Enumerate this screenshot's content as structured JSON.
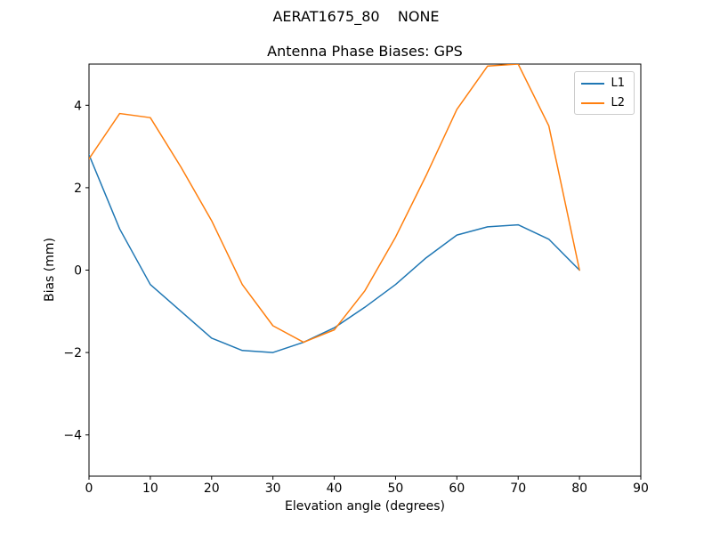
{
  "figure": {
    "suptitle": "AERAT1675_80    NONE"
  },
  "chart_data": {
    "type": "line",
    "title": "Antenna Phase Biases: GPS",
    "xlabel": "Elevation angle (degrees)",
    "ylabel": "Bias (mm)",
    "xlim": [
      0,
      90
    ],
    "ylim": [
      -5,
      5
    ],
    "xticks": [
      0,
      10,
      20,
      30,
      40,
      50,
      60,
      70,
      80,
      90
    ],
    "yticks": [
      -4,
      -2,
      0,
      2,
      4
    ],
    "grid": false,
    "legend_position": "upper right",
    "legend_entries": [
      "L1",
      "L2"
    ],
    "x": [
      0,
      5,
      10,
      15,
      20,
      25,
      30,
      35,
      40,
      45,
      50,
      55,
      60,
      65,
      70,
      75,
      80
    ],
    "series": [
      {
        "name": "L1",
        "color": "#1f77b4",
        "values": [
          2.8,
          1.0,
          -0.35,
          -1.0,
          -1.65,
          -1.95,
          -2.0,
          -1.75,
          -1.4,
          -0.9,
          -0.35,
          0.3,
          0.85,
          1.05,
          1.1,
          0.75,
          0.0
        ]
      },
      {
        "name": "L2",
        "color": "#ff7f0e",
        "values": [
          2.7,
          3.8,
          3.7,
          2.5,
          1.2,
          -0.35,
          -1.35,
          -1.75,
          -1.45,
          -0.5,
          0.8,
          2.3,
          3.9,
          4.95,
          5.0,
          3.5,
          0.0
        ]
      }
    ]
  }
}
